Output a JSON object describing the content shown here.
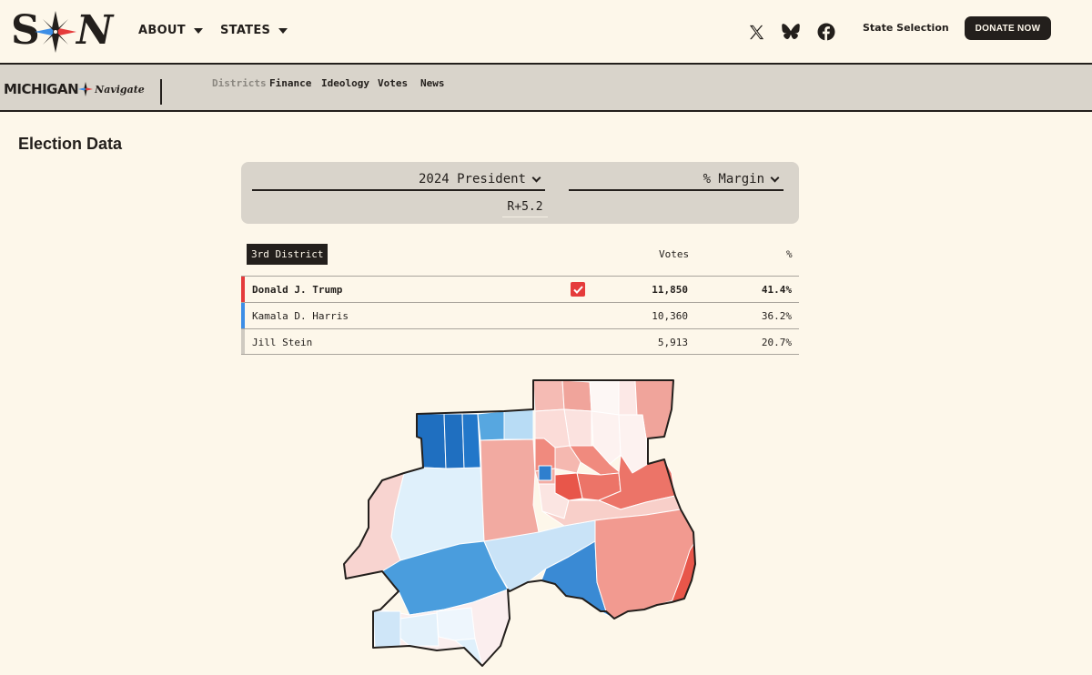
{
  "header": {
    "nav": [
      {
        "label": "ABOUT"
      },
      {
        "label": "STATES"
      }
    ],
    "social": [
      "x-icon",
      "bluesky-icon",
      "facebook-icon"
    ],
    "state_selection": "State Selection",
    "donate": "DONATE NOW"
  },
  "subnav": {
    "state": "MICHIGAN",
    "brand_script": "Navigate",
    "items": [
      {
        "label": "Districts",
        "active": true
      },
      {
        "label": "Finance"
      },
      {
        "label": "Ideology"
      },
      {
        "label": "Votes"
      },
      {
        "label": "News"
      }
    ]
  },
  "page": {
    "title": "Election Data"
  },
  "controls": {
    "race": "2024 President",
    "metric": "% Margin",
    "margin": "R+5.2"
  },
  "results": {
    "district": "3rd District",
    "columns": {
      "votes": "Votes",
      "pct": "%"
    },
    "rows": [
      {
        "name": "Donald J. Trump",
        "votes": "11,850",
        "pct": "41.4%",
        "winner": true,
        "color": "#e53b3b"
      },
      {
        "name": "Kamala D. Harris",
        "votes": "10,360",
        "pct": "36.2%",
        "winner": false,
        "color": "#3d8ee6"
      },
      {
        "name": "Jill Stein",
        "votes": "5,913",
        "pct": "20.7%",
        "winner": false,
        "color": "#cfcac1"
      }
    ]
  },
  "colors": {
    "background": "#fdf7ea",
    "dark": "#231f1c",
    "republican": "#e53b3b",
    "democrat": "#3d8ee6"
  }
}
